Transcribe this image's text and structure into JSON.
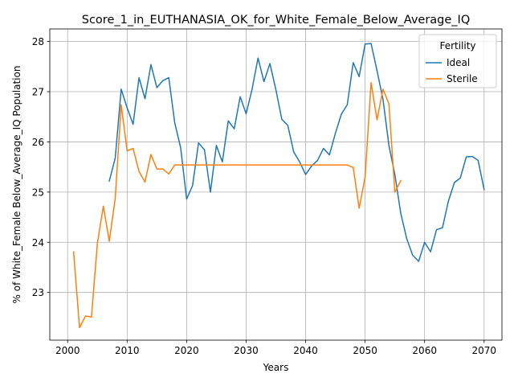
{
  "chart_data": {
    "type": "line",
    "title": "Score_1_in_EUTHANASIA_OK_for_White_Female_Below_Average_IQ",
    "xlabel": "Years",
    "ylabel": "% of White_Female Below_Average_IQ Population",
    "xlim": [
      1997,
      2073
    ],
    "ylim": [
      22.05,
      28.25
    ],
    "xticks": [
      2000,
      2010,
      2020,
      2030,
      2040,
      2050,
      2060,
      2070
    ],
    "yticks": [
      23,
      24,
      25,
      26,
      27,
      28
    ],
    "grid": true,
    "legend": {
      "title": "Fertility",
      "placement": "top-right"
    },
    "series": [
      {
        "name": "Ideal",
        "color": "#1f77b4",
        "x": [
          2007,
          2008,
          2009,
          2010,
          2011,
          2012,
          2013,
          2014,
          2015,
          2016,
          2017,
          2018,
          2019,
          2020,
          2021,
          2022,
          2023,
          2024,
          2025,
          2026,
          2027,
          2028,
          2029,
          2030,
          2031,
          2032,
          2033,
          2034,
          2035,
          2036,
          2037,
          2038,
          2039,
          2040,
          2041,
          2042,
          2043,
          2044,
          2045,
          2046,
          2047,
          2048,
          2049,
          2050,
          2051,
          2052,
          2053,
          2054,
          2055,
          2056,
          2057,
          2058,
          2059,
          2060,
          2061,
          2062,
          2063,
          2064,
          2065,
          2066,
          2067,
          2068,
          2069,
          2070
        ],
        "y": [
          25.22,
          25.68,
          27.05,
          26.68,
          26.35,
          27.28,
          26.86,
          27.54,
          27.08,
          27.22,
          27.28,
          26.38,
          25.88,
          24.86,
          25.13,
          25.98,
          25.84,
          25.0,
          25.93,
          25.6,
          26.42,
          26.26,
          26.9,
          26.56,
          27.05,
          27.67,
          27.2,
          27.56,
          27.04,
          26.45,
          26.33,
          25.8,
          25.6,
          25.35,
          25.52,
          25.63,
          25.87,
          25.74,
          26.17,
          26.55,
          26.74,
          27.58,
          27.3,
          27.95,
          27.96,
          27.42,
          26.85,
          25.93,
          25.35,
          24.57,
          24.07,
          23.74,
          23.62,
          24.0,
          23.81,
          24.25,
          24.29,
          24.82,
          25.19,
          25.28,
          25.7,
          25.71,
          25.63,
          25.05
        ]
      },
      {
        "name": "Sterile",
        "color": "#ff7f0e",
        "x": [
          2001,
          2002,
          2003,
          2004,
          2005,
          2006,
          2007,
          2008,
          2009,
          2010,
          2011,
          2012,
          2013,
          2014,
          2015,
          2016,
          2017,
          2018,
          2019,
          2020,
          2021,
          2022,
          2023,
          2024,
          2025,
          2026,
          2027,
          2028,
          2029,
          2030,
          2031,
          2032,
          2033,
          2034,
          2035,
          2036,
          2037,
          2038,
          2039,
          2040,
          2041,
          2042,
          2043,
          2044,
          2045,
          2046,
          2047,
          2048,
          2049,
          2050,
          2051,
          2052,
          2053,
          2054,
          2055,
          2056
        ],
        "y": [
          23.81,
          22.3,
          22.53,
          22.51,
          23.98,
          24.72,
          24.02,
          24.88,
          26.74,
          25.82,
          25.87,
          25.41,
          25.2,
          25.75,
          25.46,
          25.46,
          25.36,
          25.54,
          25.54,
          25.54,
          25.54,
          25.54,
          25.54,
          25.54,
          25.54,
          25.54,
          25.54,
          25.54,
          25.54,
          25.54,
          25.54,
          25.54,
          25.54,
          25.54,
          25.54,
          25.54,
          25.54,
          25.54,
          25.54,
          25.54,
          25.54,
          25.54,
          25.54,
          25.54,
          25.54,
          25.54,
          25.54,
          25.49,
          24.68,
          25.3,
          27.18,
          26.44,
          27.05,
          26.76,
          25.0,
          25.23
        ]
      }
    ]
  }
}
